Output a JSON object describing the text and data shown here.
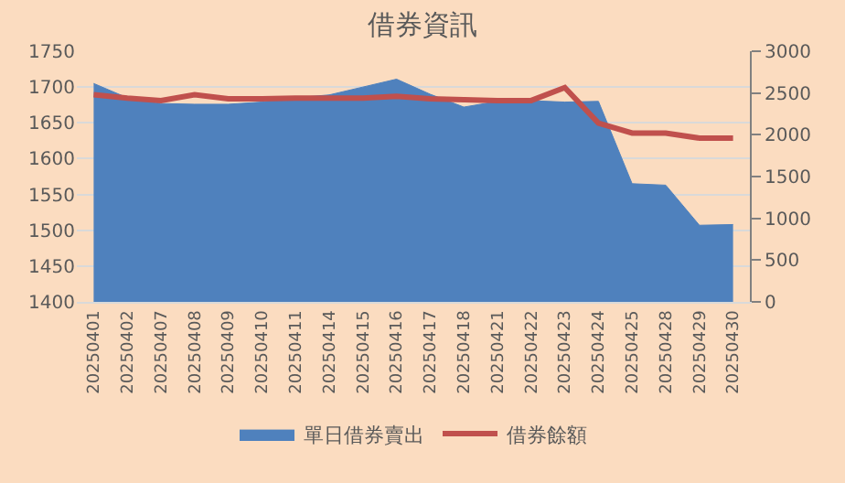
{
  "chart_data": {
    "type": "area",
    "title": "借券資訊",
    "categories": [
      "20250401",
      "20250402",
      "20250407",
      "20250408",
      "20250409",
      "20250410",
      "20250411",
      "20250414",
      "20250415",
      "20250416",
      "20250417",
      "20250418",
      "20250421",
      "20250422",
      "20250423",
      "20250424",
      "20250425",
      "20250428",
      "20250429",
      "20250430"
    ],
    "series": [
      {
        "name": "單日借券賣出",
        "color": "#4f81bd",
        "values": [
          1705,
          1685,
          1677,
          1676,
          1676,
          1679,
          1685,
          1689,
          1700,
          1711,
          1690,
          1672,
          1680,
          1681,
          1679,
          1680,
          1565,
          1563,
          1507,
          1508
        ]
      },
      {
        "name": "借券餘額",
        "type": "line",
        "axis": "y2",
        "color": "#c0504d",
        "values": [
          2480,
          2440,
          2410,
          2480,
          2430,
          2430,
          2440,
          2440,
          2440,
          2460,
          2430,
          2420,
          2410,
          2410,
          2565,
          2140,
          2020,
          2020,
          1960,
          1960
        ]
      }
    ],
    "ylim": [
      1400,
      1750
    ],
    "yticks": [
      1400,
      1450,
      1500,
      1550,
      1600,
      1650,
      1700,
      1750
    ],
    "y2lim": [
      0,
      3000
    ],
    "y2ticks": [
      0,
      500,
      1000,
      1500,
      2000,
      2500,
      3000
    ],
    "grid": "y",
    "legend": "bottom"
  }
}
